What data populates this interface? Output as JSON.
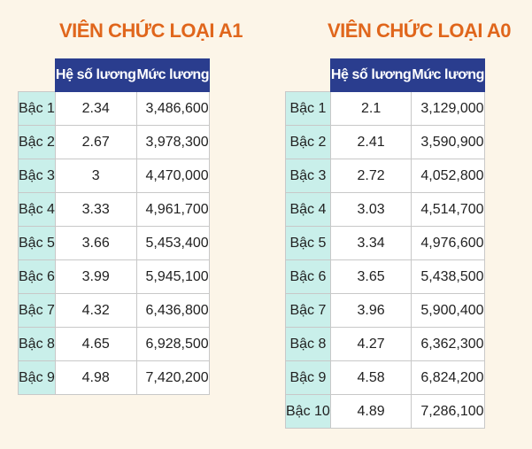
{
  "tables": [
    {
      "title": "VIÊN CHỨC LOẠI A1",
      "headers": [
        "Hệ số lương",
        "Mức lương"
      ],
      "rows": [
        {
          "grade": "Bậc 1",
          "coefficient": "2.34",
          "salary": "3,486,600"
        },
        {
          "grade": "Bậc 2",
          "coefficient": "2.67",
          "salary": "3,978,300"
        },
        {
          "grade": "Bậc 3",
          "coefficient": "3",
          "salary": "4,470,000"
        },
        {
          "grade": "Bậc 4",
          "coefficient": "3.33",
          "salary": "4,961,700"
        },
        {
          "grade": "Bậc 5",
          "coefficient": "3.66",
          "salary": "5,453,400"
        },
        {
          "grade": "Bậc 6",
          "coefficient": "3.99",
          "salary": "5,945,100"
        },
        {
          "grade": "Bậc 7",
          "coefficient": "4.32",
          "salary": "6,436,800"
        },
        {
          "grade": "Bậc 8",
          "coefficient": "4.65",
          "salary": "6,928,500"
        },
        {
          "grade": "Bậc 9",
          "coefficient": "4.98",
          "salary": "7,420,200"
        }
      ]
    },
    {
      "title": "VIÊN CHỨC LOẠI A0",
      "headers": [
        "Hệ số lương",
        "Mức lương"
      ],
      "rows": [
        {
          "grade": "Bậc 1",
          "coefficient": "2.1",
          "salary": "3,129,000"
        },
        {
          "grade": "Bậc 2",
          "coefficient": "2.41",
          "salary": "3,590,900"
        },
        {
          "grade": "Bậc 3",
          "coefficient": "2.72",
          "salary": "4,052,800"
        },
        {
          "grade": "Bậc 4",
          "coefficient": "3.03",
          "salary": "4,514,700"
        },
        {
          "grade": "Bậc 5",
          "coefficient": "3.34",
          "salary": "4,976,600"
        },
        {
          "grade": "Bậc 6",
          "coefficient": "3.65",
          "salary": "5,438,500"
        },
        {
          "grade": "Bậc 7",
          "coefficient": "3.96",
          "salary": "5,900,400"
        },
        {
          "grade": "Bậc 8",
          "coefficient": "4.27",
          "salary": "6,362,300"
        },
        {
          "grade": "Bậc 9",
          "coefficient": "4.58",
          "salary": "6,824,200"
        },
        {
          "grade": "Bậc 10",
          "coefficient": "4.89",
          "salary": "7,286,100"
        }
      ]
    }
  ],
  "colors": {
    "title": "#e0661c",
    "header_background": "#2a3d8e",
    "grade_background": "#c9efea",
    "page_background": "#fcf5e8"
  }
}
